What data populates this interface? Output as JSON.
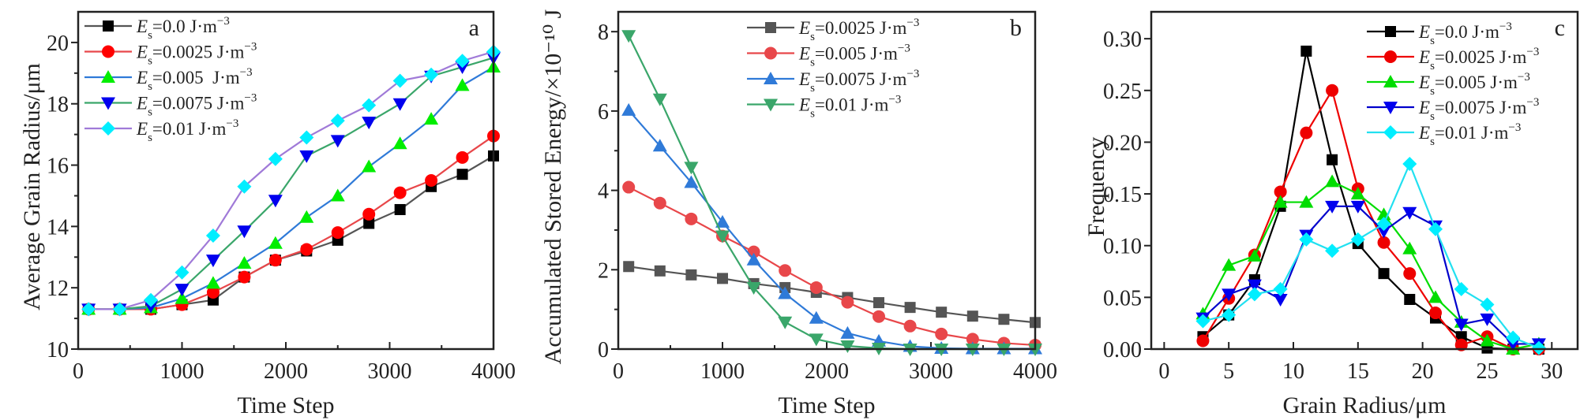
{
  "chart_data": [
    {
      "panel_label": "a",
      "type": "line",
      "xlabel": "Time Step",
      "ylabel": "Average Grain Radius/μm",
      "xlim": [
        0,
        4000
      ],
      "ylim": [
        10,
        21
      ],
      "xticks": [
        0,
        1000,
        2000,
        3000,
        4000
      ],
      "yticks": [
        10,
        12,
        14,
        16,
        18,
        20
      ],
      "legend": "top-left",
      "x": [
        100,
        400,
        700,
        1000,
        1300,
        1600,
        1900,
        2200,
        2500,
        2800,
        3100,
        3400,
        3700,
        4000
      ],
      "series": [
        {
          "name": "Es=0.0 J·m−3",
          "marker": "square",
          "line_color": "#555555",
          "marker_color": "#000000",
          "values": [
            11.3,
            11.3,
            11.3,
            11.45,
            11.6,
            12.35,
            12.9,
            13.2,
            13.55,
            14.1,
            14.55,
            15.3,
            15.7,
            16.3
          ]
        },
        {
          "name": "Es=0.0025 J·m−3",
          "marker": "circle",
          "line_color": "#e8474a",
          "marker_color": "#ff0000",
          "values": [
            11.3,
            11.3,
            11.3,
            11.45,
            11.85,
            12.35,
            12.9,
            13.25,
            13.8,
            14.4,
            15.1,
            15.5,
            16.25,
            16.95
          ]
        },
        {
          "name": "Es=0.005  J·m−3",
          "marker": "triangle-up",
          "line_color": "#2f7ad8",
          "marker_color": "#00ee00",
          "values": [
            11.3,
            11.3,
            11.35,
            11.65,
            12.15,
            12.8,
            13.45,
            14.3,
            15.0,
            15.95,
            16.7,
            17.5,
            18.6,
            19.2
          ]
        },
        {
          "name": "Es=0.0075 J·m−3",
          "marker": "triangle-down",
          "line_color": "#3aa66a",
          "marker_color": "#0000ee",
          "values": [
            11.3,
            11.3,
            11.4,
            11.95,
            12.9,
            13.85,
            14.85,
            16.3,
            16.8,
            17.4,
            18.0,
            18.9,
            19.2,
            19.5
          ]
        },
        {
          "name": "Es=0.01 J·m−3",
          "marker": "diamond",
          "line_color": "#a07ad8",
          "marker_color": "#00eeff",
          "values": [
            11.3,
            11.3,
            11.6,
            12.5,
            13.7,
            15.3,
            16.2,
            16.9,
            17.45,
            17.95,
            18.75,
            18.95,
            19.4,
            19.7
          ]
        }
      ]
    },
    {
      "panel_label": "b",
      "type": "line",
      "xlabel": "Time Step",
      "ylabel": "Accumulated Stored Energy/×10⁻¹⁰ J",
      "xlim": [
        0,
        4000
      ],
      "ylim": [
        0,
        8.5
      ],
      "xticks": [
        0,
        1000,
        2000,
        3000,
        4000
      ],
      "yticks": [
        0,
        2,
        4,
        6,
        8
      ],
      "legend": "top-right",
      "x": [
        100,
        400,
        700,
        1000,
        1300,
        1600,
        1900,
        2200,
        2500,
        2800,
        3100,
        3400,
        3700,
        4000
      ],
      "series": [
        {
          "name": "Es=0.0025 J·m−3",
          "marker": "square",
          "line_color": "#555555",
          "marker_color": "#555555",
          "values": [
            2.08,
            1.97,
            1.87,
            1.78,
            1.65,
            1.55,
            1.43,
            1.3,
            1.17,
            1.05,
            0.93,
            0.83,
            0.75,
            0.67
          ]
        },
        {
          "name": "Es=0.005 J·m−3",
          "marker": "circle",
          "line_color": "#e8474a",
          "marker_color": "#e8474a",
          "values": [
            4.08,
            3.68,
            3.28,
            2.85,
            2.45,
            1.98,
            1.55,
            1.18,
            0.82,
            0.58,
            0.38,
            0.25,
            0.15,
            0.1
          ]
        },
        {
          "name": "Es=0.0075 J·m−3",
          "marker": "triangle-up",
          "line_color": "#2f7ad8",
          "marker_color": "#2f7ad8",
          "values": [
            6.02,
            5.12,
            4.2,
            3.2,
            2.25,
            1.4,
            0.78,
            0.4,
            0.2,
            0.07,
            0.02,
            0.01,
            0.01,
            0.01
          ]
        },
        {
          "name": "Es=0.01 J·m−3",
          "marker": "triangle-down",
          "line_color": "#3aa66a",
          "marker_color": "#3aa66a",
          "values": [
            7.9,
            6.3,
            4.58,
            2.85,
            1.55,
            0.68,
            0.25,
            0.08,
            0.02,
            0,
            0,
            0,
            0,
            0
          ]
        }
      ]
    },
    {
      "panel_label": "c",
      "type": "line",
      "xlabel": "Grain Radius/μm",
      "ylabel": "Frequency",
      "xlim": [
        -1,
        32
      ],
      "ylim": [
        0,
        0.326
      ],
      "xticks": [
        0,
        5,
        10,
        15,
        20,
        25,
        30
      ],
      "yticks": [
        "0.00",
        "0.05",
        "0.10",
        "0.15",
        "0.20",
        "0.25",
        "0.30"
      ],
      "legend": "top-right",
      "x": [
        3,
        5,
        7,
        9,
        11,
        13,
        15,
        17,
        19,
        21,
        23,
        25,
        27,
        29
      ],
      "series": [
        {
          "name": "Es=0.0 J·m−3",
          "marker": "square",
          "line_color": "#000000",
          "marker_color": "#000000",
          "values": [
            0.012,
            0.033,
            0.067,
            0.138,
            0.288,
            0.183,
            0.102,
            0.073,
            0.048,
            0.03,
            0.012,
            0.001,
            0,
            0
          ]
        },
        {
          "name": "Es=0.0025 J·m−3",
          "marker": "circle",
          "line_color": "#ee0000",
          "marker_color": "#ee0000",
          "values": [
            0.008,
            0.049,
            0.091,
            0.152,
            0.209,
            0.25,
            0.155,
            0.103,
            0.073,
            0.035,
            0.004,
            0.012,
            0,
            0
          ]
        },
        {
          "name": "Es=0.005 J·m−3",
          "marker": "triangle-up",
          "line_color": "#00dd00",
          "marker_color": "#00dd00",
          "values": [
            0.034,
            0.081,
            0.09,
            0.142,
            0.142,
            0.162,
            0.15,
            0.13,
            0.097,
            0.05,
            0.026,
            0.008,
            0,
            0.005
          ]
        },
        {
          "name": "Es=0.0075 J·m−3",
          "marker": "triangle-down",
          "line_color": "#0000cc",
          "marker_color": "#0000ee",
          "values": [
            0.03,
            0.053,
            0.062,
            0.048,
            0.11,
            0.138,
            0.138,
            0.114,
            0.132,
            0.119,
            0.024,
            0.029,
            0.005,
            0.005
          ]
        },
        {
          "name": "Es=0.01 J·m−3",
          "marker": "diamond",
          "line_color": "#22e0f0",
          "marker_color": "#00eeff",
          "values": [
            0.027,
            0.033,
            0.053,
            0.058,
            0.106,
            0.095,
            0.106,
            0.121,
            0.179,
            0.116,
            0.058,
            0.043,
            0.011,
            0.001
          ]
        }
      ]
    }
  ]
}
